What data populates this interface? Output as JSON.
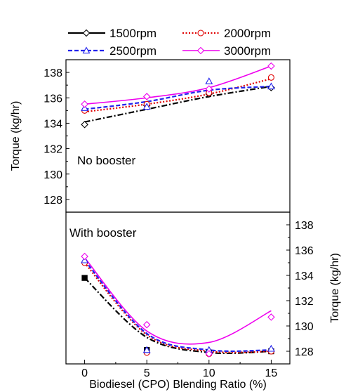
{
  "chart_data": [
    {
      "type": "line",
      "panel_label": "No booster",
      "ylabel": "Torque (kg/hr)",
      "ylim": [
        127,
        139
      ],
      "y_ticks": [
        128,
        130,
        132,
        134,
        136,
        138
      ],
      "x": [
        0,
        5,
        10,
        15
      ],
      "series": [
        {
          "name": "1500rpm",
          "marker": "diamond",
          "color": "#000000",
          "values": [
            133.9,
            135.4,
            136.3,
            136.8
          ]
        },
        {
          "name": "2000rpm",
          "marker": "circle",
          "color": "#e00000",
          "values": [
            135.0,
            135.5,
            136.4,
            137.6
          ]
        },
        {
          "name": "2500rpm",
          "marker": "triangle",
          "color": "#2222ee",
          "values": [
            135.2,
            135.3,
            137.3,
            136.9
          ]
        },
        {
          "name": "3000rpm",
          "marker": "diamond",
          "color": "#ee00ee",
          "values": [
            135.5,
            136.1,
            136.7,
            138.5
          ]
        }
      ],
      "fit_lines": [
        {
          "color": "#000000",
          "dash": "dashdot",
          "values": [
            134.1,
            135.1,
            136.1,
            136.9
          ]
        },
        {
          "color": "#e00000",
          "dash": "dot",
          "values": [
            134.9,
            135.5,
            136.3,
            137.5
          ]
        },
        {
          "color": "#2222ee",
          "dash": "dash",
          "values": [
            135.1,
            135.7,
            136.6,
            136.9
          ]
        },
        {
          "color": "#ee00ee",
          "dash": "solid",
          "values": [
            135.5,
            136.0,
            136.8,
            138.5
          ]
        }
      ]
    },
    {
      "type": "line",
      "panel_label": "With booster",
      "ylabel": "Torque (kg/hr)",
      "xlabel": "Biodiesel (CPO) Blending Ratio (%)",
      "ylim": [
        127,
        139
      ],
      "y_ticks": [
        128,
        130,
        132,
        134,
        136,
        138
      ],
      "x_ticks": [
        0,
        5,
        10,
        15
      ],
      "x": [
        0,
        5,
        10,
        15
      ],
      "series": [
        {
          "name": "1500rpm",
          "marker": "square",
          "color": "#000000",
          "values": [
            133.8,
            128.1,
            127.9,
            128.0
          ]
        },
        {
          "name": "2000rpm",
          "marker": "circle",
          "color": "#e00000",
          "values": [
            135.0,
            127.9,
            127.8,
            128.0
          ]
        },
        {
          "name": "2500rpm",
          "marker": "triangle",
          "color": "#2222ee",
          "values": [
            135.2,
            128.1,
            128.1,
            128.2
          ]
        },
        {
          "name": "3000rpm",
          "marker": "diamond",
          "color": "#ee00ee",
          "values": [
            135.5,
            130.1,
            127.8,
            130.7
          ]
        }
      ],
      "fit_lines": [
        {
          "color": "#000000",
          "dash": "dashdot",
          "values": [
            133.8,
            129.1,
            127.9,
            128.0
          ]
        },
        {
          "color": "#e00000",
          "dash": "dot",
          "values": [
            135.0,
            129.3,
            128.0,
            128.0
          ]
        },
        {
          "color": "#2222ee",
          "dash": "dash",
          "values": [
            135.2,
            129.4,
            128.1,
            128.1
          ]
        },
        {
          "color": "#ee00ee",
          "dash": "solid",
          "values": [
            135.4,
            129.6,
            128.7,
            131.2
          ]
        }
      ]
    }
  ]
}
